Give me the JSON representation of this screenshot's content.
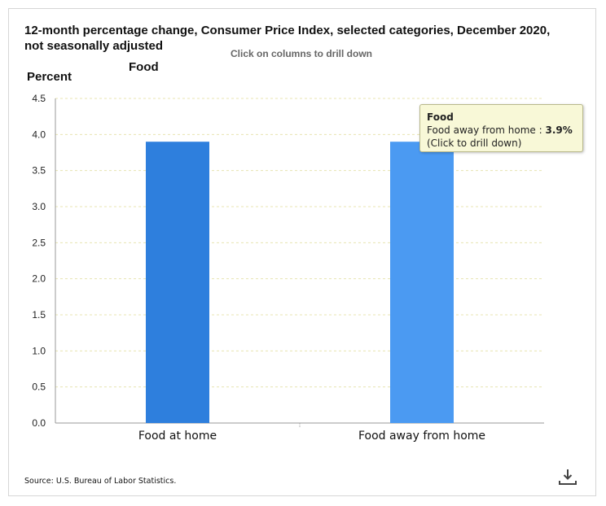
{
  "header": {
    "title": "12-month percentage change, Consumer Price Index, selected categories, December 2020, not seasonally adjusted",
    "drill_hint": "Click on columns to drill down",
    "subtitle": "Food",
    "ylabel": "Percent"
  },
  "tooltip": {
    "title": "Food",
    "category": "Food away from home :",
    "value": "3.9%",
    "hint": "(Click to drill down)"
  },
  "footer": {
    "source": "Source: U.S. Bureau of Labor Statistics.",
    "download_icon": "download-icon"
  },
  "colors": {
    "bar_primary": "#2e7fdd",
    "bar_hover": "#4b9af2",
    "grid": "#e8e4b0",
    "axis": "#999999"
  },
  "chart_data": {
    "type": "bar",
    "title": "12-month percentage change, Consumer Price Index, selected categories, December 2020, not seasonally adjusted",
    "subtitle": "Food",
    "xlabel": "",
    "ylabel": "Percent",
    "categories": [
      "Food at home",
      "Food away from home"
    ],
    "values": [
      3.9,
      3.9
    ],
    "ylim": [
      0,
      4.5
    ],
    "yticks": [
      "0.0",
      "0.5",
      "1.0",
      "1.5",
      "2.0",
      "2.5",
      "3.0",
      "3.5",
      "4.0",
      "4.5"
    ],
    "grid": true,
    "legend": "none",
    "highlighted_index": 1
  }
}
